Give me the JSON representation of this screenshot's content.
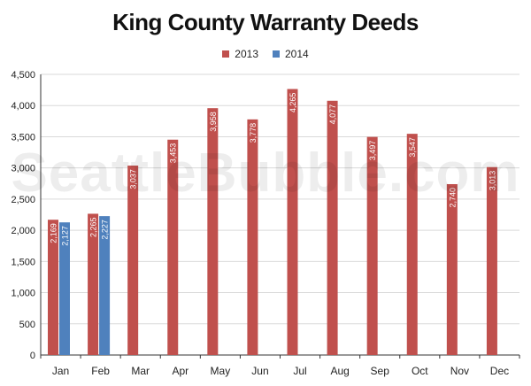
{
  "colors": {
    "series_2013": "#c0504d",
    "series_2014": "#4f81bd",
    "grid": "#d9d9d9",
    "axis": "#333333"
  },
  "watermark_text": "SeattleBubble.com",
  "chart_data": {
    "type": "bar",
    "title": "King County Warranty Deeds",
    "xlabel": "",
    "ylabel": "",
    "ylim": [
      0,
      4500
    ],
    "yticks": [
      0,
      500,
      1000,
      1500,
      2000,
      2500,
      3000,
      3500,
      4000,
      4500
    ],
    "ytick_labels": [
      "0",
      "500",
      "1,000",
      "1,500",
      "2,000",
      "2,500",
      "3,000",
      "3,500",
      "4,000",
      "4,500"
    ],
    "grid": true,
    "legend_position": "top-center",
    "categories": [
      "Jan",
      "Feb",
      "Mar",
      "Apr",
      "May",
      "Jun",
      "Jul",
      "Aug",
      "Sep",
      "Oct",
      "Nov",
      "Dec"
    ],
    "series": [
      {
        "name": "2013",
        "values": [
          2169,
          2265,
          3037,
          3453,
          3958,
          3778,
          4265,
          4077,
          3497,
          3547,
          2740,
          3013
        ],
        "labels": [
          "2,169",
          "2,265",
          "3,037",
          "3,453",
          "3,958",
          "3,778",
          "4,265",
          "4,077",
          "3,497",
          "3,547",
          "2,740",
          "3,013"
        ]
      },
      {
        "name": "2014",
        "values": [
          2127,
          2227,
          null,
          null,
          null,
          null,
          null,
          null,
          null,
          null,
          null,
          null
        ],
        "labels": [
          "2,127",
          "2,227",
          "",
          "",
          "",
          "",
          "",
          "",
          "",
          "",
          "",
          ""
        ]
      }
    ]
  }
}
